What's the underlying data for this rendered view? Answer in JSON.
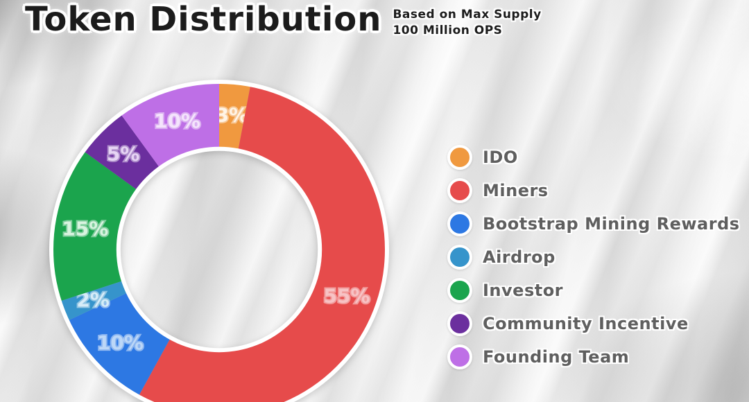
{
  "header": {
    "title": "Token Distribution",
    "subtitle_line1": "Based on Max Supply",
    "subtitle_line2": "100 Million OPS"
  },
  "chart_data": {
    "type": "pie",
    "title": "Token Distribution",
    "subtitle": "Based on Max Supply 100 Million OPS",
    "donut": true,
    "direction": "clockwise",
    "start_angle_deg": 0,
    "inner_radius_ratio": 0.6,
    "value_suffix": "%",
    "legend_position": "right",
    "slices": [
      {
        "label": "IDO",
        "value": 3,
        "color": "#F0993F",
        "label_color": "#FFF4E6"
      },
      {
        "label": "Miners",
        "value": 55,
        "color": "#E64B4B",
        "label_color": "#F7C3C5"
      },
      {
        "label": "Bootstrap Mining Rewards",
        "value": 10,
        "color": "#2D78E3",
        "label_color": "#BCD7F7"
      },
      {
        "label": "Airdrop",
        "value": 2,
        "color": "#3694CB",
        "label_color": "#D6ECF8"
      },
      {
        "label": "Investor",
        "value": 15,
        "color": "#1BA44D",
        "label_color": "#D8F3DF"
      },
      {
        "label": "Community Incentive",
        "value": 5,
        "color": "#6B2F9E",
        "label_color": "#E6D4F4"
      },
      {
        "label": "Founding Team",
        "value": 10,
        "color": "#BE6FE6",
        "label_color": "#F4E4FC"
      }
    ]
  }
}
